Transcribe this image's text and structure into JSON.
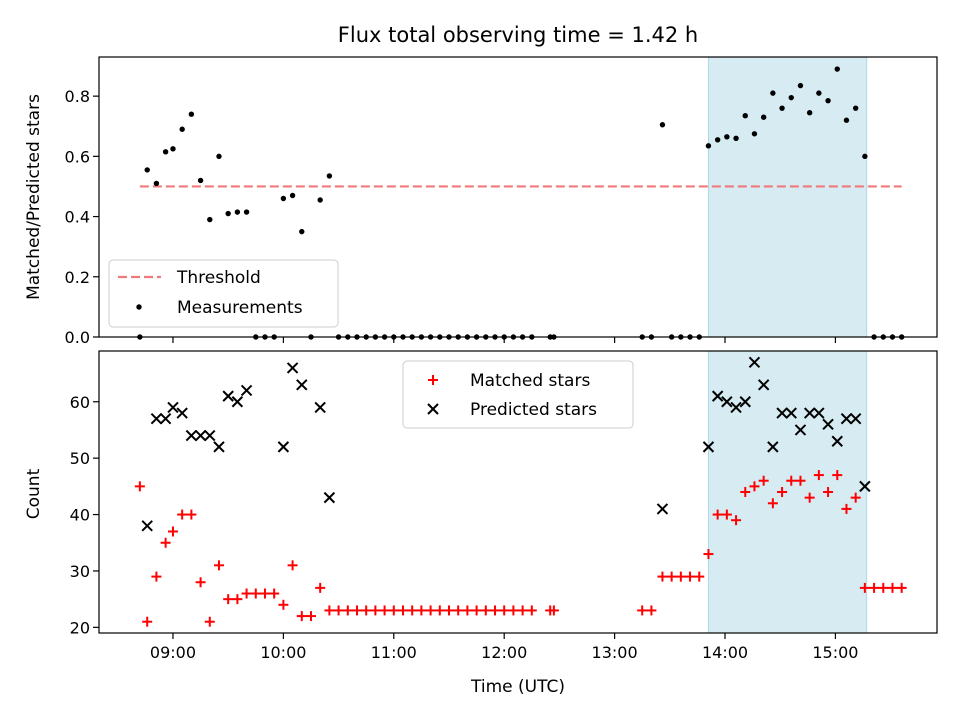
{
  "chart_data": {
    "type": "scatter",
    "title": "Flux total observing time = 1.42 h",
    "xlabel": "Time (UTC)",
    "x_ticks": [
      "09:00",
      "10:00",
      "11:00",
      "12:00",
      "13:00",
      "14:00",
      "15:00"
    ],
    "highlight_span": [
      "13:51",
      "15:17"
    ],
    "panels": [
      {
        "ylabel": "Matched/Predicted stars",
        "ylim": [
          0,
          0.93
        ],
        "yticks": [
          "0.0",
          "0.2",
          "0.4",
          "0.6",
          "0.8"
        ],
        "legend_position": "lower-left",
        "threshold": {
          "name": "Threshold",
          "y": 0.5,
          "x_start": "08:42",
          "x_end": "15:36",
          "color": "#f07a7a"
        },
        "series": [
          {
            "name": "Measurements",
            "marker": "dot",
            "color": "#000000",
            "points": [
              [
                "08:42",
                0.0
              ],
              [
                "08:46",
                0.555
              ],
              [
                "08:51",
                0.51
              ],
              [
                "08:56",
                0.615
              ],
              [
                "09:00",
                0.625
              ],
              [
                "09:05",
                0.69
              ],
              [
                "09:10",
                0.74
              ],
              [
                "09:15",
                0.52
              ],
              [
                "09:20",
                0.39
              ],
              [
                "09:25",
                0.6
              ],
              [
                "09:30",
                0.41
              ],
              [
                "09:35",
                0.415
              ],
              [
                "09:40",
                0.415
              ],
              [
                "09:45",
                0.0
              ],
              [
                "09:50",
                0.0
              ],
              [
                "09:55",
                0.0
              ],
              [
                "10:00",
                0.46
              ],
              [
                "10:05",
                0.47
              ],
              [
                "10:10",
                0.35
              ],
              [
                "10:15",
                0.0
              ],
              [
                "10:20",
                0.455
              ],
              [
                "10:25",
                0.535
              ],
              [
                "10:30",
                0.0
              ],
              [
                "10:35",
                0.0
              ],
              [
                "10:40",
                0.0
              ],
              [
                "10:45",
                0.0
              ],
              [
                "10:50",
                0.0
              ],
              [
                "10:55",
                0.0
              ],
              [
                "11:00",
                0.0
              ],
              [
                "11:05",
                0.0
              ],
              [
                "11:10",
                0.0
              ],
              [
                "11:15",
                0.0
              ],
              [
                "11:20",
                0.0
              ],
              [
                "11:25",
                0.0
              ],
              [
                "11:30",
                0.0
              ],
              [
                "11:35",
                0.0
              ],
              [
                "11:40",
                0.0
              ],
              [
                "11:45",
                0.0
              ],
              [
                "11:50",
                0.0
              ],
              [
                "11:55",
                0.0
              ],
              [
                "12:00",
                0.0
              ],
              [
                "12:05",
                0.0
              ],
              [
                "12:10",
                0.0
              ],
              [
                "12:15",
                0.0
              ],
              [
                "12:25",
                0.0
              ],
              [
                "12:27",
                0.0
              ],
              [
                "13:15",
                0.0
              ],
              [
                "13:20",
                0.0
              ],
              [
                "13:26",
                0.705
              ],
              [
                "13:31",
                0.0
              ],
              [
                "13:36",
                0.0
              ],
              [
                "13:41",
                0.0
              ],
              [
                "13:46",
                0.0
              ],
              [
                "13:51",
                0.635
              ],
              [
                "13:56",
                0.655
              ],
              [
                "14:01",
                0.665
              ],
              [
                "14:06",
                0.66
              ],
              [
                "14:11",
                0.735
              ],
              [
                "14:16",
                0.675
              ],
              [
                "14:21",
                0.73
              ],
              [
                "14:26",
                0.81
              ],
              [
                "14:31",
                0.76
              ],
              [
                "14:36",
                0.795
              ],
              [
                "14:41",
                0.835
              ],
              [
                "14:46",
                0.745
              ],
              [
                "14:51",
                0.81
              ],
              [
                "14:56",
                0.785
              ],
              [
                "15:01",
                0.89
              ],
              [
                "15:06",
                0.72
              ],
              [
                "15:11",
                0.76
              ],
              [
                "15:16",
                0.6
              ],
              [
                "15:21",
                0.0
              ],
              [
                "15:26",
                0.0
              ],
              [
                "15:31",
                0.0
              ],
              [
                "15:36",
                0.0
              ]
            ]
          }
        ]
      },
      {
        "ylabel": "Count",
        "ylim": [
          19,
          69
        ],
        "yticks": [
          "20",
          "30",
          "40",
          "50",
          "60"
        ],
        "legend_position": "top-center",
        "series": [
          {
            "name": "Matched stars",
            "marker": "plus",
            "color": "#ff0000",
            "points": [
              [
                "08:42",
                45
              ],
              [
                "08:46",
                21
              ],
              [
                "08:51",
                29
              ],
              [
                "08:56",
                35
              ],
              [
                "09:00",
                37
              ],
              [
                "09:05",
                40
              ],
              [
                "09:10",
                40
              ],
              [
                "09:15",
                28
              ],
              [
                "09:20",
                21
              ],
              [
                "09:25",
                31
              ],
              [
                "09:30",
                25
              ],
              [
                "09:35",
                25
              ],
              [
                "09:40",
                26
              ],
              [
                "09:45",
                26
              ],
              [
                "09:50",
                26
              ],
              [
                "09:55",
                26
              ],
              [
                "10:00",
                24
              ],
              [
                "10:05",
                31
              ],
              [
                "10:10",
                22
              ],
              [
                "10:15",
                22
              ],
              [
                "10:20",
                27
              ],
              [
                "10:25",
                23
              ],
              [
                "10:30",
                23
              ],
              [
                "10:35",
                23
              ],
              [
                "10:40",
                23
              ],
              [
                "10:45",
                23
              ],
              [
                "10:50",
                23
              ],
              [
                "10:55",
                23
              ],
              [
                "11:00",
                23
              ],
              [
                "11:05",
                23
              ],
              [
                "11:10",
                23
              ],
              [
                "11:15",
                23
              ],
              [
                "11:20",
                23
              ],
              [
                "11:25",
                23
              ],
              [
                "11:30",
                23
              ],
              [
                "11:35",
                23
              ],
              [
                "11:40",
                23
              ],
              [
                "11:45",
                23
              ],
              [
                "11:50",
                23
              ],
              [
                "11:55",
                23
              ],
              [
                "12:00",
                23
              ],
              [
                "12:05",
                23
              ],
              [
                "12:10",
                23
              ],
              [
                "12:15",
                23
              ],
              [
                "12:25",
                23
              ],
              [
                "12:27",
                23
              ],
              [
                "13:15",
                23
              ],
              [
                "13:20",
                23
              ],
              [
                "13:26",
                29
              ],
              [
                "13:31",
                29
              ],
              [
                "13:36",
                29
              ],
              [
                "13:41",
                29
              ],
              [
                "13:46",
                29
              ],
              [
                "13:51",
                33
              ],
              [
                "13:56",
                40
              ],
              [
                "14:01",
                40
              ],
              [
                "14:06",
                39
              ],
              [
                "14:11",
                44
              ],
              [
                "14:16",
                45
              ],
              [
                "14:21",
                46
              ],
              [
                "14:26",
                42
              ],
              [
                "14:31",
                44
              ],
              [
                "14:36",
                46
              ],
              [
                "14:41",
                46
              ],
              [
                "14:46",
                43
              ],
              [
                "14:51",
                47
              ],
              [
                "14:56",
                44
              ],
              [
                "15:01",
                47
              ],
              [
                "15:06",
                41
              ],
              [
                "15:11",
                43
              ],
              [
                "15:16",
                27
              ],
              [
                "15:21",
                27
              ],
              [
                "15:26",
                27
              ],
              [
                "15:31",
                27
              ],
              [
                "15:36",
                27
              ]
            ]
          },
          {
            "name": "Predicted stars",
            "marker": "x",
            "color": "#000000",
            "points": [
              [
                "08:46",
                38
              ],
              [
                "08:51",
                57
              ],
              [
                "08:56",
                57
              ],
              [
                "09:00",
                59
              ],
              [
                "09:05",
                58
              ],
              [
                "09:10",
                54
              ],
              [
                "09:15",
                54
              ],
              [
                "09:20",
                54
              ],
              [
                "09:25",
                52
              ],
              [
                "09:30",
                61
              ],
              [
                "09:35",
                60
              ],
              [
                "09:40",
                62
              ],
              [
                "10:00",
                52
              ],
              [
                "10:05",
                66
              ],
              [
                "10:10",
                63
              ],
              [
                "10:20",
                59
              ],
              [
                "10:25",
                43
              ],
              [
                "13:26",
                41
              ],
              [
                "13:51",
                52
              ],
              [
                "13:56",
                61
              ],
              [
                "14:01",
                60
              ],
              [
                "14:06",
                59
              ],
              [
                "14:11",
                60
              ],
              [
                "14:16",
                67
              ],
              [
                "14:21",
                63
              ],
              [
                "14:26",
                52
              ],
              [
                "14:31",
                58
              ],
              [
                "14:36",
                58
              ],
              [
                "14:41",
                55
              ],
              [
                "14:46",
                58
              ],
              [
                "14:51",
                58
              ],
              [
                "14:56",
                56
              ],
              [
                "15:01",
                53
              ],
              [
                "15:06",
                57
              ],
              [
                "15:11",
                57
              ],
              [
                "15:16",
                45
              ]
            ]
          }
        ]
      }
    ]
  }
}
